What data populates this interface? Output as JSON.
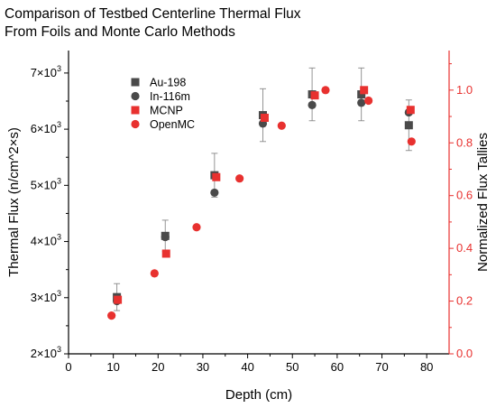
{
  "chart_data": {
    "type": "scatter",
    "title_lines": [
      "Comparison of Testbed Centerline Thermal Flux",
      "From Foils and Monte Carlo Methods"
    ],
    "xlabel": "Depth (cm)",
    "ylabel": "Thermal Flux (n/cm^2×s)",
    "y2label": "Normalized Flux Tallies",
    "xlim": [
      0,
      85
    ],
    "ylim": [
      2000,
      7400
    ],
    "y2lim": [
      0,
      1.15
    ],
    "x_ticks": [
      "0",
      "10",
      "20",
      "30",
      "40",
      "50",
      "60",
      "70",
      "80"
    ],
    "y_ticks": [
      {
        "value": 2000,
        "mantissa": "2×10",
        "exp": "3"
      },
      {
        "value": 3000,
        "mantissa": "3×10",
        "exp": "3"
      },
      {
        "value": 4000,
        "mantissa": "4×10",
        "exp": "3"
      },
      {
        "value": 5000,
        "mantissa": "5×10",
        "exp": "3"
      },
      {
        "value": 6000,
        "mantissa": "6×10",
        "exp": "3"
      },
      {
        "value": 7000,
        "mantissa": "7×10",
        "exp": "3"
      }
    ],
    "y2_ticks": [
      "0.0",
      "0.2",
      "0.4",
      "0.6",
      "0.8",
      "1.0"
    ],
    "legend_position": "upper-left",
    "colors": {
      "au": "#4a4a4a",
      "in": "#4a4a4a",
      "mcnp": "#e8312f",
      "openmc": "#e8312f",
      "right_axis": "#e8312f"
    },
    "series": [
      {
        "name": "Au-198",
        "marker": "square",
        "axis": "left",
        "points": [
          {
            "x": 10.8,
            "y": 3010,
            "err": 240
          },
          {
            "x": 21.6,
            "y": 4100,
            "err": 280
          },
          {
            "x": 32.6,
            "y": 5180,
            "err": 390
          },
          {
            "x": 43.4,
            "y": 6250,
            "err": 470
          },
          {
            "x": 54.4,
            "y": 6620,
            "err": 470
          },
          {
            "x": 65.4,
            "y": 6620,
            "err": 470
          },
          {
            "x": 76.0,
            "y": 6070,
            "err": 450
          }
        ]
      },
      {
        "name": "In-116m",
        "marker": "circle",
        "axis": "left",
        "points": [
          {
            "x": 10.8,
            "y": 2940
          },
          {
            "x": 21.6,
            "y": 4080
          },
          {
            "x": 32.6,
            "y": 4870
          },
          {
            "x": 43.4,
            "y": 6100
          },
          {
            "x": 54.4,
            "y": 6430
          },
          {
            "x": 65.4,
            "y": 6470
          },
          {
            "x": 76.0,
            "y": 6300
          }
        ]
      },
      {
        "name": "MCNP",
        "marker": "square",
        "axis": "right",
        "points": [
          {
            "x": 11.0,
            "y": 0.205
          },
          {
            "x": 21.8,
            "y": 0.38
          },
          {
            "x": 33.0,
            "y": 0.67
          },
          {
            "x": 43.8,
            "y": 0.895
          },
          {
            "x": 55.0,
            "y": 0.98
          },
          {
            "x": 66.0,
            "y": 1.0
          },
          {
            "x": 76.4,
            "y": 0.925
          }
        ]
      },
      {
        "name": "OpenMC",
        "marker": "circle",
        "axis": "right",
        "points": [
          {
            "x": 9.6,
            "y": 0.145
          },
          {
            "x": 19.2,
            "y": 0.305
          },
          {
            "x": 28.6,
            "y": 0.48
          },
          {
            "x": 38.2,
            "y": 0.665
          },
          {
            "x": 47.6,
            "y": 0.865
          },
          {
            "x": 57.4,
            "y": 1.0
          },
          {
            "x": 67.0,
            "y": 0.96
          },
          {
            "x": 76.6,
            "y": 0.805
          }
        ]
      }
    ]
  }
}
